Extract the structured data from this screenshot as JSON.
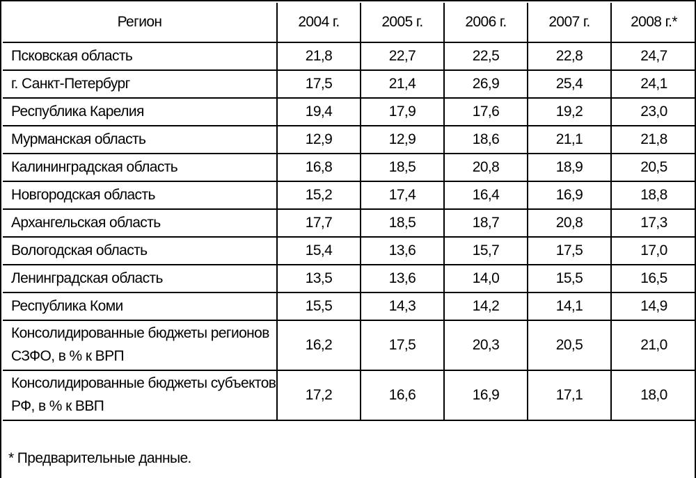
{
  "table": {
    "headers": [
      "Регион",
      "2004 г.",
      "2005 г.",
      "2006 г.",
      "2007 г.",
      "2008 г.*"
    ],
    "rows": [
      [
        "Псковская область",
        "21,8",
        "22,7",
        "22,5",
        "22,8",
        "24,7"
      ],
      [
        "г. Санкт-Петербург",
        "17,5",
        "21,4",
        "26,9",
        "25,4",
        "24,1"
      ],
      [
        "Республика Карелия",
        "19,4",
        "17,9",
        "17,6",
        "19,2",
        "23,0"
      ],
      [
        "Мурманская область",
        "12,9",
        "12,9",
        "18,6",
        "21,1",
        "21,8"
      ],
      [
        "Калининградская область",
        "16,8",
        "18,5",
        "20,8",
        "18,9",
        "20,5"
      ],
      [
        "Новгородская область",
        "15,2",
        "17,4",
        "16,4",
        "16,9",
        "18,8"
      ],
      [
        "Архангельская область",
        "17,7",
        "18,5",
        "18,7",
        "20,8",
        "17,3"
      ],
      [
        "Вологодская область",
        "15,4",
        "13,6",
        "15,7",
        "17,5",
        "17,0"
      ],
      [
        "Ленинградская область",
        "13,5",
        "13,6",
        "14,0",
        "15,5",
        "16,5"
      ],
      [
        "Республика Коми",
        "15,5",
        "14,3",
        "14,2",
        "14,1",
        "14,9"
      ],
      [
        "Консолидированные бюджеты регионов СЗФО, в % к ВРП",
        "16,2",
        "17,5",
        "20,3",
        "20,5",
        "21,0"
      ],
      [
        "Консолидированные бюджеты субъектов РФ, в % к ВВП",
        "17,2",
        "16,6",
        "16,9",
        "17,1",
        "18,0"
      ]
    ]
  },
  "footnote": "* Предварительные данные."
}
